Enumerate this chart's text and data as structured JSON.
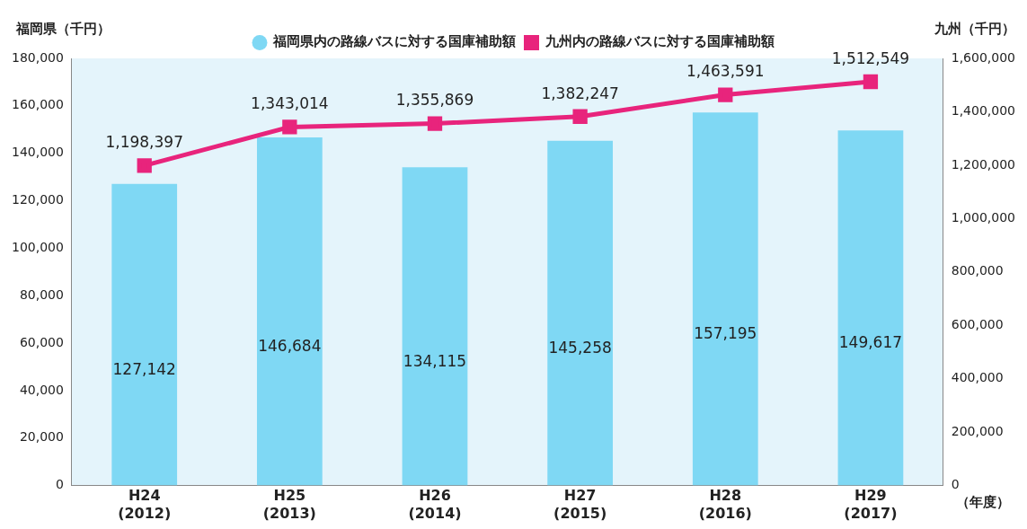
{
  "chart_data": {
    "type": "bar",
    "categories": [
      "H24\n(2012)",
      "H25\n(2013)",
      "H26\n(2014)",
      "H27\n(2015)",
      "H28\n(2016)",
      "H29\n(2017)"
    ],
    "series": [
      {
        "name": "福岡県内の路線バスに対する国庫補助額",
        "color": "#7fd8f4",
        "values": [
          127142,
          146684,
          134115,
          145258,
          157195,
          149617
        ],
        "value_labels": [
          "127,142",
          "146,684",
          "134,115",
          "145,258",
          "157,195",
          "149,617"
        ]
      },
      {
        "name": "九州内の路線バスに対する国庫補助額",
        "type": "line",
        "axis": "y2",
        "color": "#e8247c",
        "values": [
          1198397,
          1343014,
          1355869,
          1382247,
          1463591,
          1512549
        ],
        "value_labels": [
          "1,198,397",
          "1,343,014",
          "1,355,869",
          "1,382,247",
          "1,463,591",
          "1,512,549"
        ]
      }
    ],
    "ylabel": "福岡県（千円）",
    "y2label": "九州（千円）",
    "xlabel": "（年度）",
    "ylim": [
      0,
      180000
    ],
    "yticks": [
      0,
      {
        "value": 20000,
        "label": "20,000"
      },
      {
        "value": 40000,
        "label": "40,000"
      },
      {
        "value": 60000,
        "label": "60,000"
      },
      {
        "value": 80000,
        "label": "80,000"
      },
      {
        "value": 100000,
        "label": "100,000"
      },
      {
        "value": 120000,
        "label": "120,000"
      },
      {
        "value": 140000,
        "label": "140,000"
      },
      {
        "value": 160000,
        "label": "160,000"
      },
      {
        "value": 180000,
        "label": "180,000"
      }
    ],
    "y2lim": [
      0,
      1600000
    ],
    "y2ticks": [
      0,
      {
        "value": 200000,
        "label": "200,000"
      },
      {
        "value": 400000,
        "label": "400,000"
      },
      {
        "value": 600000,
        "label": "600,000"
      },
      {
        "value": 800000,
        "label": "800,000"
      },
      {
        "value": 1000000,
        "label": "1,000,000"
      },
      {
        "value": 1200000,
        "label": "1,200,000"
      },
      {
        "value": 1400000,
        "label": "1,400,000"
      },
      {
        "value": 1600000,
        "label": "1,600,000"
      }
    ],
    "legend": "top",
    "grid": false,
    "marker": "square",
    "line_style": "solid"
  }
}
